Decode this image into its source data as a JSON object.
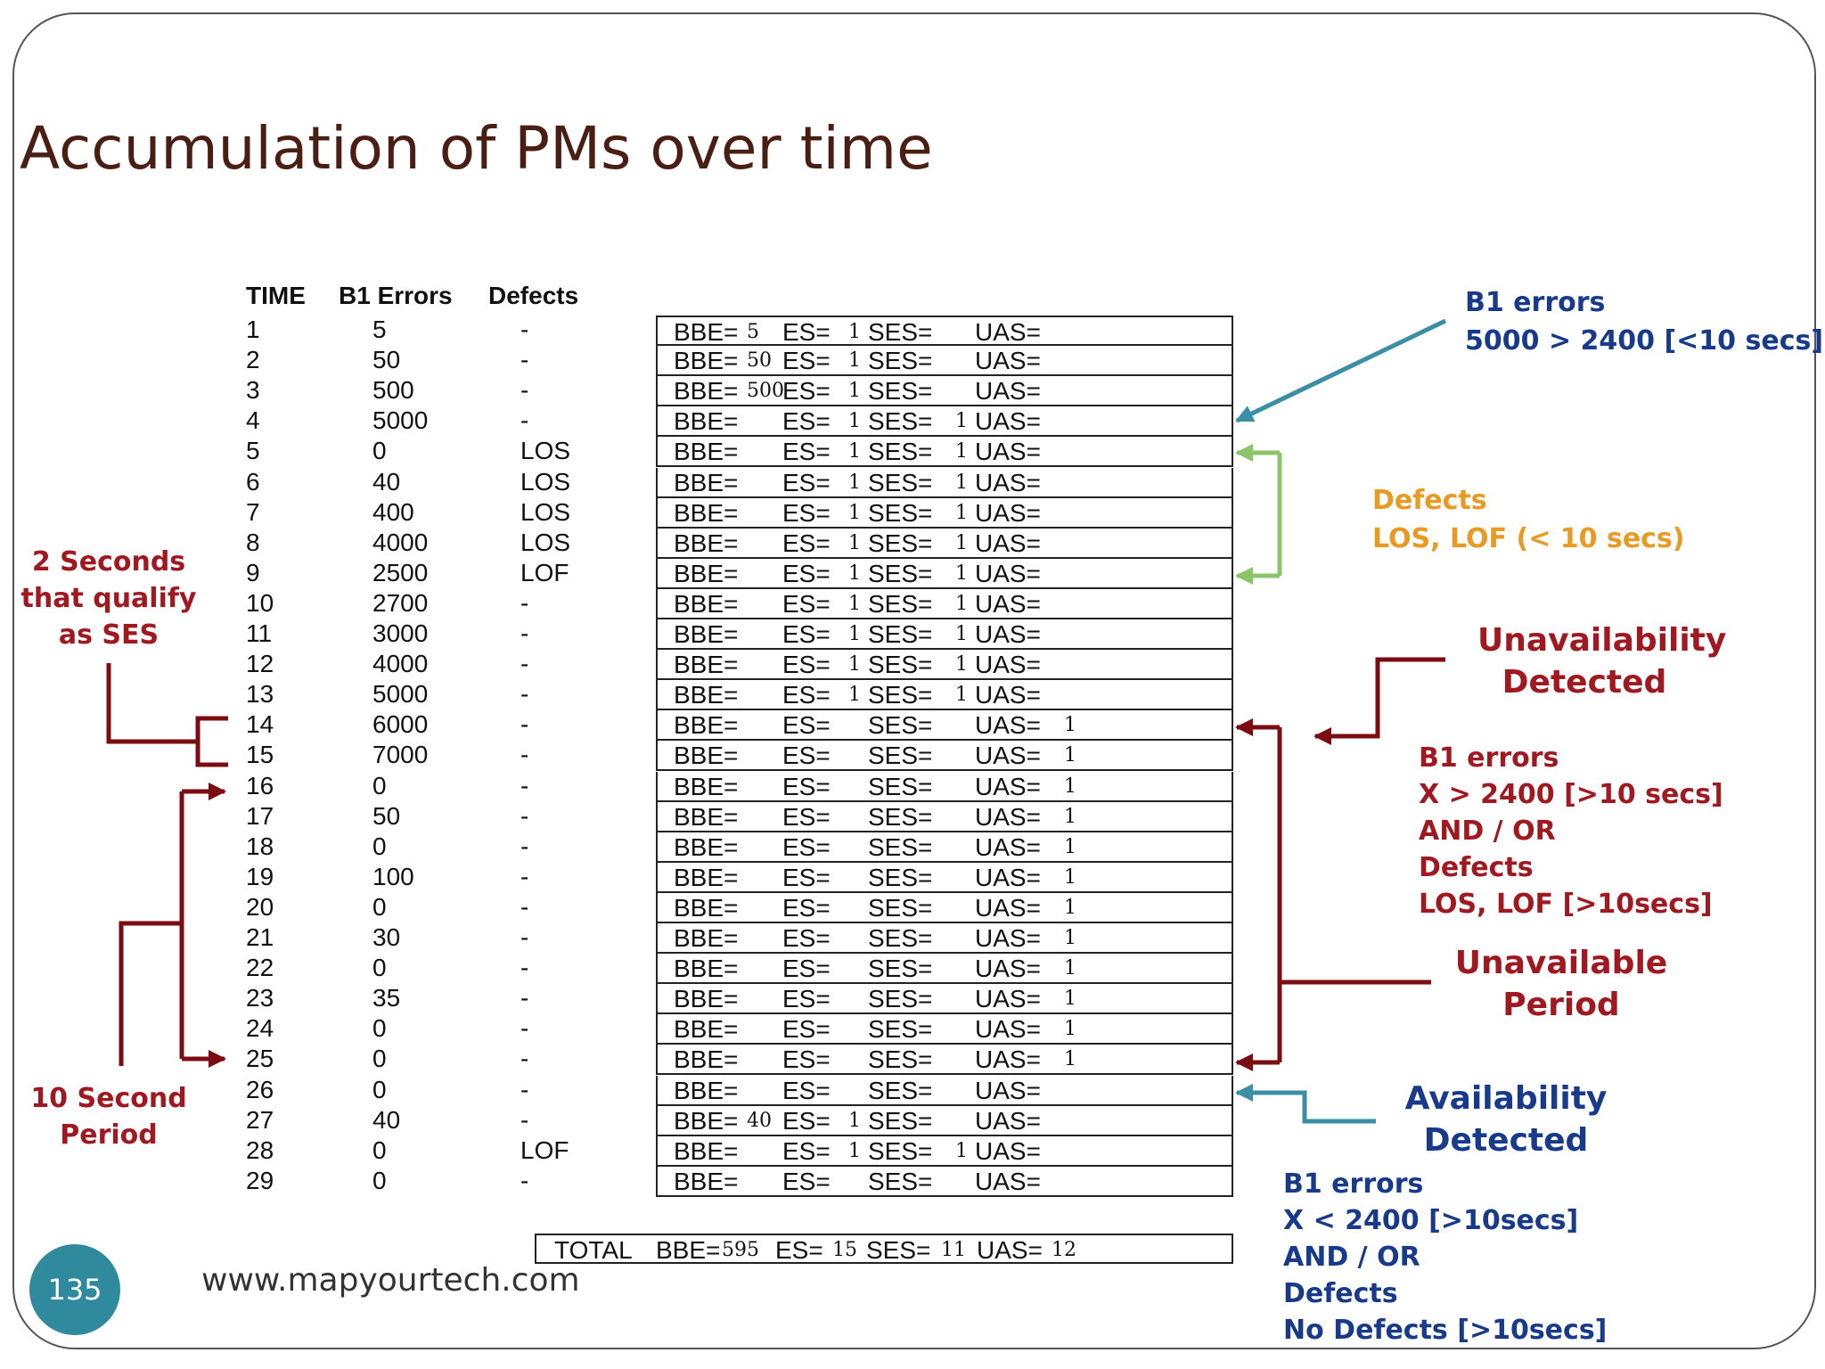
{
  "title": "Accumulation of PMs over time",
  "table": {
    "headers": {
      "time": "TIME",
      "b1": "B1 Errors",
      "defects": "Defects"
    },
    "rows": [
      {
        "time": "1",
        "b1": "5",
        "def": "-"
      },
      {
        "time": "2",
        "b1": "50",
        "def": "-"
      },
      {
        "time": "3",
        "b1": "500",
        "def": "-"
      },
      {
        "time": "4",
        "b1": "5000",
        "def": "-"
      },
      {
        "time": "5",
        "b1": "0",
        "def": "LOS"
      },
      {
        "time": "6",
        "b1": "40",
        "def": "LOS"
      },
      {
        "time": "7",
        "b1": "400",
        "def": "LOS"
      },
      {
        "time": "8",
        "b1": "4000",
        "def": "LOS"
      },
      {
        "time": "9",
        "b1": "2500",
        "def": "LOF"
      },
      {
        "time": "10",
        "b1": "2700",
        "def": "-"
      },
      {
        "time": "11",
        "b1": "3000",
        "def": "-"
      },
      {
        "time": "12",
        "b1": "4000",
        "def": "-"
      },
      {
        "time": "13",
        "b1": "5000",
        "def": "-"
      },
      {
        "time": "14",
        "b1": "6000",
        "def": "-"
      },
      {
        "time": "15",
        "b1": "7000",
        "def": "-"
      },
      {
        "time": "16",
        "b1": "0",
        "def": "-"
      },
      {
        "time": "17",
        "b1": "50",
        "def": "-"
      },
      {
        "time": "18",
        "b1": "0",
        "def": "-"
      },
      {
        "time": "19",
        "b1": "100",
        "def": "-"
      },
      {
        "time": "20",
        "b1": "0",
        "def": "-"
      },
      {
        "time": "21",
        "b1": "30",
        "def": "-"
      },
      {
        "time": "22",
        "b1": "0",
        "def": "-"
      },
      {
        "time": "23",
        "b1": "35",
        "def": "-"
      },
      {
        "time": "24",
        "b1": "0",
        "def": "-"
      },
      {
        "time": "25",
        "b1": "0",
        "def": "-"
      },
      {
        "time": "26",
        "b1": "0",
        "def": "-"
      },
      {
        "time": "27",
        "b1": "40",
        "def": "-"
      },
      {
        "time": "28",
        "b1": "0",
        "def": "LOF"
      },
      {
        "time": "29",
        "b1": "0",
        "def": "-"
      }
    ]
  },
  "pm": {
    "labels": {
      "bbe": "BBE=",
      "es": "ES=",
      "ses": "SES=",
      "uas": "UAS="
    },
    "rows": [
      {
        "bbe": "5",
        "es": "1",
        "ses": "",
        "uas": ""
      },
      {
        "bbe": "50",
        "es": "1",
        "ses": "",
        "uas": ""
      },
      {
        "bbe": "500",
        "es": "1",
        "ses": "",
        "uas": ""
      },
      {
        "bbe": "",
        "es": "1",
        "ses": "1",
        "uas": ""
      },
      {
        "bbe": "",
        "es": "1",
        "ses": "1",
        "uas": ""
      },
      {
        "bbe": "",
        "es": "1",
        "ses": "1",
        "uas": ""
      },
      {
        "bbe": "",
        "es": "1",
        "ses": "1",
        "uas": ""
      },
      {
        "bbe": "",
        "es": "1",
        "ses": "1",
        "uas": ""
      },
      {
        "bbe": "",
        "es": "1",
        "ses": "1",
        "uas": ""
      },
      {
        "bbe": "",
        "es": "1",
        "ses": "1",
        "uas": ""
      },
      {
        "bbe": "",
        "es": "1",
        "ses": "1",
        "uas": ""
      },
      {
        "bbe": "",
        "es": "1",
        "ses": "1",
        "uas": ""
      },
      {
        "bbe": "",
        "es": "1",
        "ses": "1",
        "uas": ""
      },
      {
        "bbe": "",
        "es": "",
        "ses": "",
        "uas": "1"
      },
      {
        "bbe": "",
        "es": "",
        "ses": "",
        "uas": "1"
      },
      {
        "bbe": "",
        "es": "",
        "ses": "",
        "uas": "1"
      },
      {
        "bbe": "",
        "es": "",
        "ses": "",
        "uas": "1"
      },
      {
        "bbe": "",
        "es": "",
        "ses": "",
        "uas": "1"
      },
      {
        "bbe": "",
        "es": "",
        "ses": "",
        "uas": "1"
      },
      {
        "bbe": "",
        "es": "",
        "ses": "",
        "uas": "1"
      },
      {
        "bbe": "",
        "es": "",
        "ses": "",
        "uas": "1"
      },
      {
        "bbe": "",
        "es": "",
        "ses": "",
        "uas": "1"
      },
      {
        "bbe": "",
        "es": "",
        "ses": "",
        "uas": "1"
      },
      {
        "bbe": "",
        "es": "",
        "ses": "",
        "uas": "1"
      },
      {
        "bbe": "",
        "es": "",
        "ses": "",
        "uas": "1"
      },
      {
        "bbe": "",
        "es": "",
        "ses": "",
        "uas": ""
      },
      {
        "bbe": "40",
        "es": "1",
        "ses": "",
        "uas": ""
      },
      {
        "bbe": "",
        "es": "1",
        "ses": "1",
        "uas": ""
      },
      {
        "bbe": "",
        "es": "",
        "ses": "",
        "uas": ""
      }
    ]
  },
  "total": {
    "label": "TOTAL",
    "bbe": "595",
    "es": "15",
    "ses": "11",
    "uas": "12"
  },
  "annotations": {
    "b1_errors_top": {
      "line1": "B1 errors",
      "line2": "5000 > 2400 [<10 secs]"
    },
    "defects": {
      "line1": "Defects",
      "line2": "LOS, LOF (< 10 secs)"
    },
    "unavailability_detected": {
      "line1": "Unavailability",
      "line2": "Detected"
    },
    "unavail_conditions": [
      "B1 errors",
      "X > 2400 [>10 secs]",
      "AND / OR",
      "Defects",
      "LOS, LOF [>10secs]"
    ],
    "unavailable_period": {
      "line1": "Unavailable",
      "line2": "Period"
    },
    "availability_detected": {
      "line1": "Availability",
      "line2": "Detected"
    },
    "avail_conditions": [
      "B1 errors",
      "X < 2400 [>10secs]",
      "AND / OR",
      "Defects",
      "No Defects [>10secs]"
    ],
    "ses_note": [
      "2 Seconds",
      "that qualify",
      "as SES"
    ],
    "period_note": [
      "10 Second",
      "Period"
    ]
  },
  "colors": {
    "title": "#4a1e12",
    "red": "#a01820",
    "dark_red": "#7a0c12",
    "blue": "#173a8a",
    "teal": "#3a8ea6",
    "green": "#8cc46a",
    "orange": "#e89a22"
  },
  "footer": {
    "page_number": "135",
    "website": "www.mapyourtech.com"
  }
}
